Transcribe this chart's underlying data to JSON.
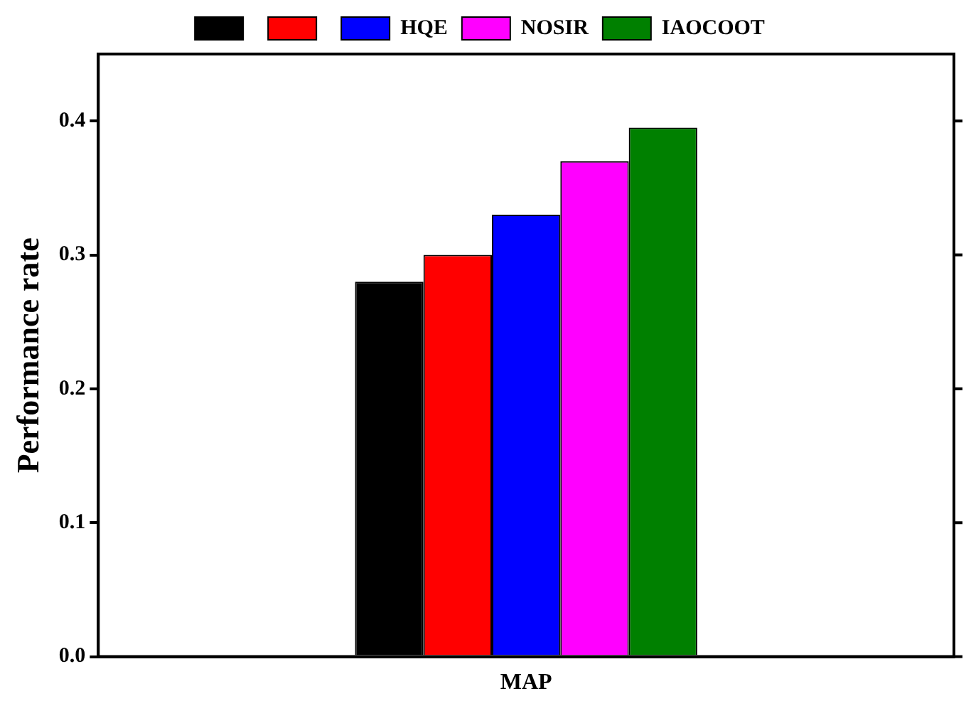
{
  "chart_data": {
    "type": "bar",
    "ylabel": "Performance rate",
    "categories": [
      "MAP"
    ],
    "series": [
      {
        "color": "#000000",
        "values": [
          0.28
        ]
      },
      {
        "color": "#ff0000",
        "values": [
          0.3
        ]
      },
      {
        "name": "HQE",
        "color": "#0000ff",
        "values": [
          0.33
        ]
      },
      {
        "name": "NOSIR",
        "color": "#ff00ff",
        "values": [
          0.37
        ]
      },
      {
        "name": "IAOCOOT",
        "color": "#008000",
        "values": [
          0.395
        ]
      }
    ],
    "ylim": [
      0,
      0.45
    ],
    "yticks": [
      {
        "value": 0,
        "label": "0.0"
      },
      0.1,
      0.2,
      0.3,
      0.4
    ],
    "legend": "top",
    "grid": false
  }
}
